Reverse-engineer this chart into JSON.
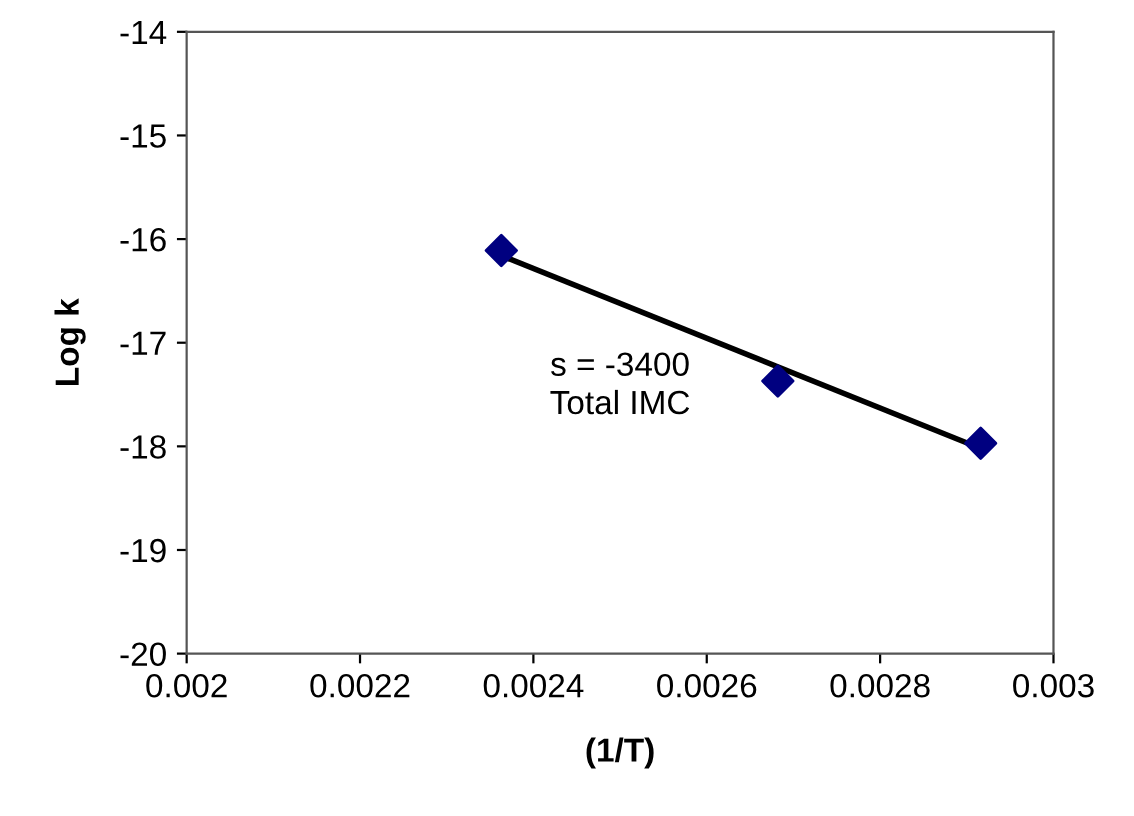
{
  "chart_data": {
    "type": "scatter",
    "xlabel": "(1/T)",
    "ylabel": "Log k",
    "series": [
      {
        "color": "#000080",
        "marker": "diamond",
        "x": [
          0.002363,
          0.002682,
          0.002916
        ],
        "values": [
          -16.11,
          -17.37,
          -17.97
        ]
      },
      {
        "type": "line",
        "color": "#000000",
        "marker": "none",
        "x": [
          0.002363,
          0.002916
        ],
        "values": [
          -16.16,
          -18.02
        ]
      }
    ],
    "annotations": [
      "s = -3400\nTotal IMC"
    ],
    "xlim": [
      0.002,
      0.003
    ],
    "xticks": [
      0.002,
      0.0022,
      0.0024,
      0.0026,
      0.0028,
      0.003
    ],
    "ylim": [
      -20,
      -14
    ],
    "yticks": [
      -20,
      -19,
      -18,
      -17,
      -16,
      -15,
      -14
    ],
    "grid": false,
    "legend": false
  }
}
